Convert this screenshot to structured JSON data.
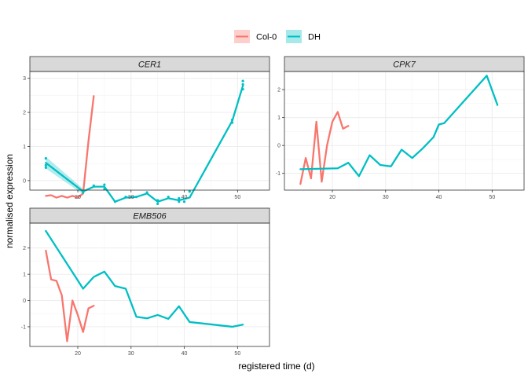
{
  "colors": {
    "Col-0": "#F8766D",
    "DH": "#00BFC4"
  },
  "legend": {
    "items": [
      {
        "label": "Col-0",
        "color": "#F8766D"
      },
      {
        "label": "DH",
        "color": "#00BFC4"
      }
    ]
  },
  "chart_data": {
    "type": "line",
    "xlabel": "registered time (d)",
    "ylabel": "normalised expression",
    "grid": true,
    "legend_position": "top",
    "panels": [
      {
        "title": "CER1",
        "xlim": [
          11,
          56
        ],
        "ylim": [
          -0.28,
          3.2
        ],
        "xticks": [
          20,
          30,
          40,
          50
        ],
        "yticks": [
          0,
          1,
          2,
          3
        ],
        "series": [
          {
            "name": "Col-0",
            "x": [
              14,
              15,
              16,
              17,
              18,
              19,
              20,
              21,
              22,
              23
            ],
            "y": [
              -0.45,
              -0.43,
              -0.5,
              -0.45,
              -0.5,
              -0.45,
              -0.5,
              -0.38,
              1.15,
              2.48
            ]
          },
          {
            "name": "DH",
            "x": [
              14,
              21,
              23,
              25,
              27,
              29,
              31,
              33,
              35,
              37,
              39,
              41,
              49,
              51
            ],
            "y": [
              0.52,
              -0.32,
              -0.18,
              -0.18,
              -0.62,
              -0.5,
              -0.48,
              -0.38,
              -0.62,
              -0.52,
              -0.58,
              -0.5,
              1.75,
              2.78
            ]
          }
        ],
        "points": {
          "name": "DH",
          "x": [
            14,
            14,
            14,
            21,
            23,
            25,
            25,
            27,
            29,
            31,
            33,
            35,
            35,
            37,
            39,
            39,
            40,
            41,
            49,
            49,
            51,
            51,
            51
          ],
          "y": [
            0.65,
            0.45,
            0.38,
            -0.35,
            -0.15,
            -0.12,
            -0.25,
            -0.62,
            -0.48,
            -0.48,
            -0.35,
            -0.58,
            -0.68,
            -0.48,
            -0.52,
            -0.62,
            -0.62,
            -0.32,
            1.7,
            1.78,
            2.68,
            2.82,
            2.92
          ]
        },
        "ribbon": {
          "x": [
            14,
            21
          ],
          "ylower": [
            0.35,
            -0.4
          ],
          "yupper": [
            0.7,
            -0.24
          ]
        }
      },
      {
        "title": "CPK7",
        "xlim": [
          11,
          56
        ],
        "ylim": [
          -1.6,
          2.65
        ],
        "xticks": [
          20,
          30,
          40,
          50
        ],
        "yticks": [
          -1,
          0,
          1,
          2
        ],
        "series": [
          {
            "name": "Col-0",
            "x": [
              14,
              15,
              16,
              17,
              18,
              19,
              20,
              21,
              22,
              23
            ],
            "y": [
              -1.38,
              -0.45,
              -1.18,
              0.85,
              -1.3,
              0.0,
              0.85,
              1.2,
              0.6,
              0.7
            ]
          },
          {
            "name": "DH",
            "x": [
              14,
              21,
              23,
              25,
              27,
              29,
              31,
              33,
              35,
              37,
              39,
              40,
              41,
              49,
              51
            ],
            "y": [
              -0.85,
              -0.82,
              -0.62,
              -1.1,
              -0.35,
              -0.7,
              -0.75,
              -0.15,
              -0.45,
              -0.1,
              0.3,
              0.75,
              0.8,
              2.5,
              1.45
            ]
          }
        ]
      },
      {
        "title": "EMB506",
        "xlim": [
          11,
          56
        ],
        "ylim": [
          -1.75,
          2.95
        ],
        "xticks": [
          20,
          30,
          40,
          50
        ],
        "yticks": [
          -1,
          0,
          1,
          2
        ],
        "series": [
          {
            "name": "Col-0",
            "x": [
              14,
              15,
              16,
              17,
              18,
              19,
              20,
              21,
              22,
              23
            ],
            "y": [
              1.9,
              0.8,
              0.75,
              0.2,
              -1.55,
              0.0,
              -0.55,
              -1.2,
              -0.3,
              -0.2
            ]
          },
          {
            "name": "DH",
            "x": [
              14,
              21,
              23,
              25,
              27,
              29,
              31,
              33,
              35,
              37,
              39,
              41,
              49,
              51
            ],
            "y": [
              2.65,
              0.45,
              0.9,
              1.1,
              0.55,
              0.45,
              -0.62,
              -0.68,
              -0.55,
              -0.7,
              -0.22,
              -0.82,
              -1.0,
              -0.92
            ]
          }
        ]
      }
    ]
  }
}
